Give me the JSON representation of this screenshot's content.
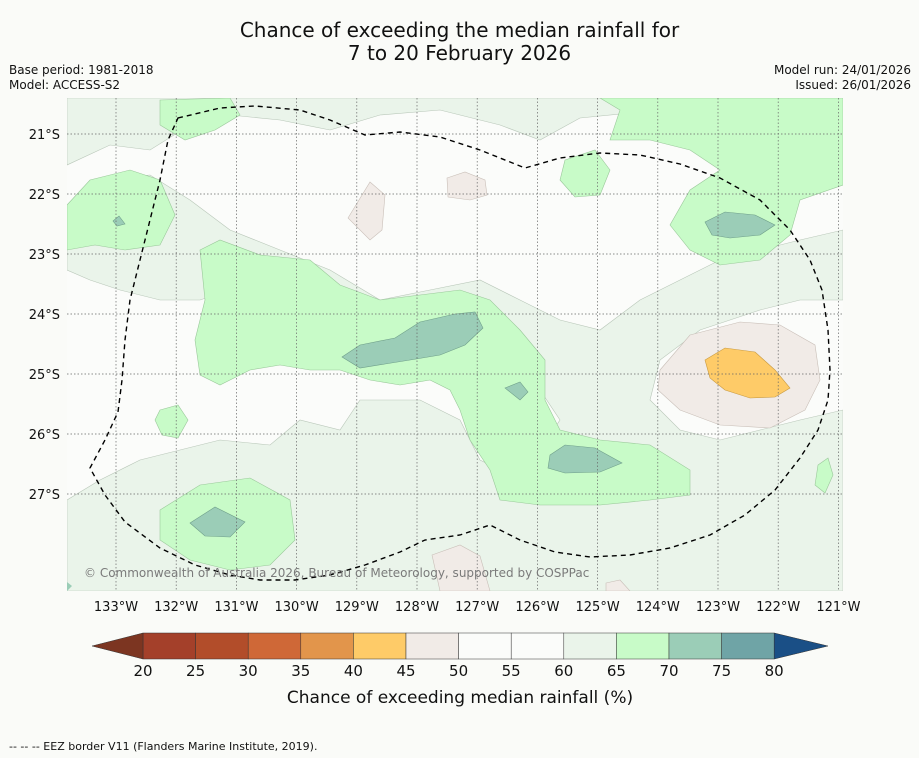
{
  "title_line1": "Chance of exceeding the median rainfall for",
  "title_line2": "7 to 20 February 2026",
  "base_period": "Base period: 1981-2018",
  "model": "Model: ACCESS-S2",
  "model_run": "Model run: 24/01/2026",
  "issued": "Issued: 26/01/2026",
  "credit": "© Commonwealth of Australia 2026, Bureau of Meteorology, supported by COSPPac",
  "lat_labels": [
    "21°S",
    "22°S",
    "23°S",
    "24°S",
    "25°S",
    "26°S",
    "27°S"
  ],
  "lon_labels": [
    "133°W",
    "132°W",
    "131°W",
    "130°W",
    "129°W",
    "128°W",
    "127°W",
    "126°W",
    "125°W",
    "124°W",
    "123°W",
    "122°W",
    "121°W"
  ],
  "colorbar": {
    "ticks": [
      "20",
      "25",
      "30",
      "35",
      "40",
      "45",
      "50",
      "55",
      "60",
      "65",
      "70",
      "75",
      "80"
    ],
    "colors": [
      "#a4402a",
      "#b24d2a",
      "#cf6837",
      "#e2954b",
      "#fecb68",
      "#f1ebe7",
      "#fbfcfa",
      "#fbfcfa",
      "#eaf4ea",
      "#c8fbc8",
      "#9bcdb7",
      "#6fa4a6",
      "#3d7a9c"
    ],
    "under_color": "#7c3521",
    "over_color": "#1a4f86",
    "label": "Chance of exceeding median rainfall (%)"
  },
  "footnote": "--  --  -- EEZ border V11 (Flanders Marine Institute, 2019)."
}
